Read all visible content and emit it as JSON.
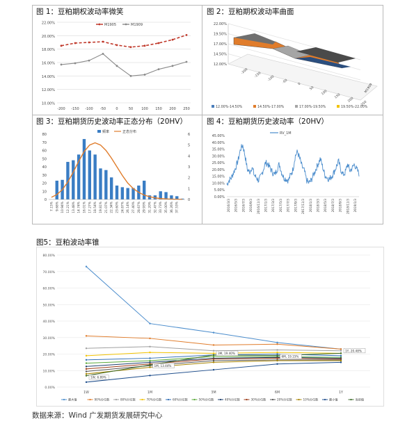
{
  "captions": {
    "fig1": "图 1：豆粕期权波动率微笑",
    "fig2": "图 2：豆粕期权波动率曲面",
    "fig3": "图 3：豆粕期货历史波动率正态分布（20HV）",
    "fig4": "图 4：豆粕期货历史波动率（20HV）",
    "fig5": "图5：豆粕波动率锥",
    "source": "数据来源：Wind 广发期货发展研究中心"
  },
  "colors": {
    "m1905": "#c0392b",
    "m1909": "#8a8a8a",
    "freq": "#3a7dc4",
    "dist": "#e07c2b",
    "rv": "#4a8ccc"
  },
  "chart_data": [
    {
      "id": "smile",
      "type": "line",
      "x": [
        -200,
        -150,
        -100,
        -50,
        0,
        50,
        100,
        150,
        200,
        250
      ],
      "series": [
        {
          "name": "M1905",
          "values": [
            18.5,
            18.9,
            19.0,
            19.1,
            18.6,
            18.3,
            18.5,
            18.9,
            19.4,
            20.1
          ]
        },
        {
          "name": "M1909",
          "values": [
            15.7,
            15.9,
            16.3,
            17.3,
            15.5,
            14.0,
            14.2,
            15.0,
            15.5,
            16.1
          ]
        }
      ],
      "ylim": [
        10,
        22
      ],
      "yticks": [
        "10.00%",
        "12.00%",
        "14.00%",
        "16.00%",
        "18.00%",
        "20.00%",
        "22.00%"
      ],
      "xticks": [
        "-200",
        "-150",
        "-100",
        "-50",
        "0",
        "50",
        "100",
        "150",
        "200",
        "250"
      ],
      "legend": "top"
    },
    {
      "id": "surface",
      "type": "area",
      "yticks": [
        "12.00%",
        "14.50%",
        "17.00%",
        "19.50%",
        "22.00%"
      ],
      "xticks": [
        "-200",
        "-150",
        "-100",
        "-50",
        "0",
        "50",
        "100",
        "150",
        "200",
        "250"
      ],
      "depth_label": "M1909",
      "legend": [
        "12.00%-14.50%",
        "14.50%-17.00%",
        "17.00%-19.50%",
        "19.50%-22.00%"
      ],
      "legend_colors": [
        "#4a7ebb",
        "#e07c2b",
        "#a5a5a5",
        "#f2c200"
      ]
    },
    {
      "id": "hv-dist",
      "type": "bar",
      "categories": [
        "7.15%",
        "8.41%",
        "9.68%",
        "10.94%",
        "12.21%",
        "13.48%",
        "14.74%",
        "16.01%",
        "17.27%",
        "18.54%",
        "19.81%",
        "21.07%",
        "22.34%",
        "23.60%",
        "24.87%",
        "26.14%",
        "27.40%",
        "28.67%",
        "29.93%",
        "31.20%",
        "32.47%",
        "33.73%",
        "35.00%",
        "36.26%",
        "37.53%"
      ],
      "category_labels": [
        "7.15%",
        "9.68%",
        "10.94%",
        "12.21%",
        "13.48%",
        "14.74%",
        "16.01%",
        "17.27%",
        "18.54%",
        "19.81%",
        "21.07%",
        "22.34%",
        "23.60%",
        "24.87%",
        "26.14%",
        "27.40%",
        "28.67%",
        "29.93%",
        "31.20%",
        "32.47%",
        "33.73%",
        "35.00%",
        "36.26%",
        "37.53%"
      ],
      "series": [
        {
          "name": "频率",
          "values": [
            0,
            23,
            24,
            46,
            48,
            55,
            74,
            60,
            55,
            38,
            36,
            27,
            17,
            15,
            14,
            14,
            17,
            23,
            5,
            5,
            10,
            9,
            5,
            4,
            1
          ]
        }
      ],
      "dist_values": [
        0.2,
        0.45,
        0.9,
        1.6,
        2.5,
        3.5,
        4.4,
        5.0,
        5.2,
        5.0,
        4.5,
        3.8,
        3.0,
        2.2,
        1.5,
        1.0,
        0.65,
        0.4,
        0.25,
        0.15,
        0.08,
        0.05,
        0.03,
        0.02,
        0.01
      ],
      "dist_name": "正态分布",
      "ylim": [
        0,
        80
      ],
      "yticks": [
        "0",
        "10",
        "20",
        "30",
        "40",
        "50",
        "60",
        "70",
        "80"
      ],
      "y2lim": [
        0,
        6
      ],
      "y2ticks": [
        "0",
        "1",
        "2",
        "3",
        "4",
        "5",
        "6"
      ],
      "legend": "top"
    },
    {
      "id": "rv",
      "type": "line",
      "series": [
        {
          "name": "RV_1M"
        }
      ],
      "ylim": [
        0,
        45
      ],
      "yticks": [
        "0.00%",
        "5.00%",
        "10.00%",
        "15.00%",
        "20.00%",
        "25.00%",
        "30.00%",
        "35.00%",
        "40.00%",
        "45.00%"
      ],
      "xticks": [
        "2016/3/3",
        "2016/5/3",
        "2016/7/3",
        "2016/9/3",
        "2016/11/3",
        "2017/1/3",
        "2017/3/3",
        "2017/5/3",
        "2017/7/3",
        "2017/9/3",
        "2017/11/3",
        "2018/1/3",
        "2018/3/3",
        "2018/5/3",
        "2018/7/3",
        "2018/9/3",
        "2018/11/3",
        "2019/1/3"
      ],
      "legend": "top"
    },
    {
      "id": "cone",
      "type": "line",
      "categories": [
        "1W",
        "1M",
        "3M",
        "6M",
        "1Y"
      ],
      "series": [
        {
          "name": "最大值",
          "color": "#4a8ccc",
          "values": [
            73.0,
            38.5,
            33.0,
            27.0,
            23.0
          ]
        },
        {
          "name": "90%分位数",
          "color": "#e07c2b",
          "values": [
            31.0,
            29.5,
            25.5,
            26.0,
            23.0
          ]
        },
        {
          "name": "80%分位数",
          "color": "#a0a0a0",
          "values": [
            23.5,
            24.5,
            22.0,
            22.5,
            22.0
          ]
        },
        {
          "name": "70%分位数",
          "color": "#f2c200",
          "values": [
            19.0,
            21.0,
            20.5,
            21.0,
            20.5
          ]
        },
        {
          "name": "60%分位数",
          "color": "#2f6db5",
          "values": [
            16.5,
            17.5,
            19.5,
            20.0,
            19.0
          ]
        },
        {
          "name": "50%分位数",
          "color": "#5aa93a",
          "values": [
            14.5,
            16.0,
            18.5,
            18.5,
            18.0
          ]
        },
        {
          "name": "40%分位数",
          "color": "#1f3f6d",
          "values": [
            12.5,
            15.0,
            17.5,
            18.0,
            17.5
          ]
        },
        {
          "name": "30%分位数",
          "color": "#9b3a16",
          "values": [
            11.0,
            14.0,
            17.0,
            17.5,
            17.0
          ]
        },
        {
          "name": "20%分位数",
          "color": "#555555",
          "values": [
            9.5,
            13.0,
            16.0,
            16.5,
            16.5
          ]
        },
        {
          "name": "10%分位数",
          "color": "#a88400",
          "values": [
            8.0,
            12.0,
            15.0,
            16.0,
            16.0
          ]
        },
        {
          "name": "最小值",
          "color": "#1f4e8c",
          "values": [
            3.0,
            7.0,
            10.5,
            14.0,
            15.0
          ]
        },
        {
          "name": "当前值",
          "color": "#3d6b2a",
          "values": [
            6.89,
            13.44,
            19.4,
            19.15,
            20.48
          ]
        }
      ],
      "labels": [
        "1W, 6.89%",
        "1M, 13.44%",
        "3M, 19.40%",
        "6M, 19.15%",
        "1Y, 20.48%"
      ],
      "ylim": [
        0,
        80
      ],
      "yticks": [
        "0.00%",
        "10.00%",
        "20.00%",
        "30.00%",
        "40.00%",
        "50.00%",
        "60.00%",
        "70.00%",
        "80.00%"
      ],
      "legend": "bottom"
    }
  ]
}
